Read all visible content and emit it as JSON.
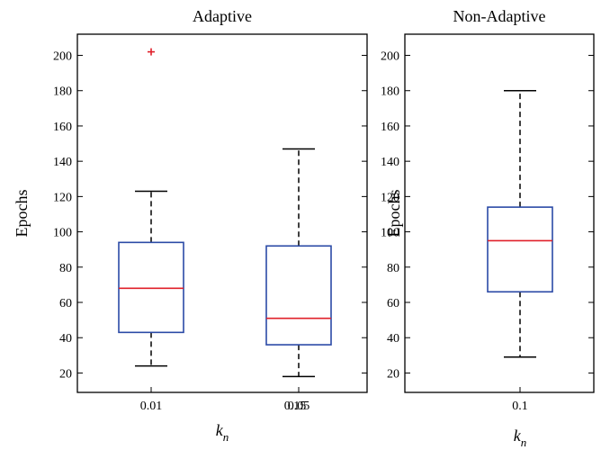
{
  "chart_data": [
    {
      "type": "boxplot",
      "title": "Adaptive",
      "xlabel": "k_n",
      "xlabel_main": "k",
      "xlabel_sub": "n",
      "ylabel": "Epochs",
      "ylim": [
        9,
        212
      ],
      "yticks": [
        20,
        40,
        60,
        80,
        100,
        120,
        140,
        160,
        180,
        200
      ],
      "categories": [
        "0.01",
        "0.05"
      ],
      "tick_overprint": "0.15",
      "boxes": [
        {
          "category": "0.01",
          "whisker_low": 24,
          "q1": 43,
          "median": 68,
          "q3": 94,
          "whisker_high": 123,
          "outliers": [
            202
          ]
        },
        {
          "category": "0.05",
          "whisker_low": 18,
          "q1": 36,
          "median": 51,
          "q3": 92,
          "whisker_high": 147,
          "outliers": []
        }
      ]
    },
    {
      "type": "boxplot",
      "title": "Non-Adaptive",
      "xlabel": "k_n",
      "xlabel_main": "k",
      "xlabel_sub": "n",
      "ylabel": "Epochs",
      "ylim": [
        9,
        212
      ],
      "yticks": [
        20,
        40,
        60,
        80,
        100,
        120,
        140,
        160,
        180,
        200
      ],
      "categories": [
        "0.1"
      ],
      "boxes": [
        {
          "category": "0.1",
          "whisker_low": 29,
          "q1": 66,
          "median": 95,
          "q3": 114,
          "whisker_high": 180,
          "outliers": []
        }
      ]
    }
  ],
  "colors": {
    "box": "#2b4aa6",
    "median": "#e0202a",
    "outlier": "#e0202a",
    "whisker": "#000000",
    "axis": "#000000"
  }
}
